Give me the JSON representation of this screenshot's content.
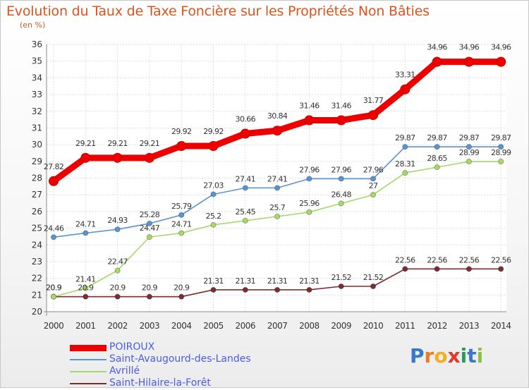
{
  "title": "Evolution du Taux de Taxe Foncière sur les Propriétés Non Bâties",
  "subtitle": "(en %)",
  "chart_data": {
    "type": "line",
    "x": [
      "2000",
      "2001",
      "2002",
      "2003",
      "2004",
      "2005",
      "2006",
      "2007",
      "2008",
      "2009",
      "2010",
      "2011",
      "2012",
      "2013",
      "2014"
    ],
    "ylim": [
      20,
      36
    ],
    "yticks": [
      "20",
      "21",
      "22",
      "23",
      "24",
      "25",
      "26",
      "27",
      "28",
      "29",
      "30",
      "31",
      "32",
      "33",
      "34",
      "35",
      "36"
    ],
    "grid": true,
    "legend_position": "bottom-left",
    "series": [
      {
        "name": "POIROUX",
        "color": "#ee0000",
        "values": [
          27.82,
          29.21,
          29.21,
          29.21,
          29.92,
          29.92,
          30.66,
          30.84,
          31.46,
          31.46,
          31.77,
          33.31,
          34.96,
          34.96,
          34.96
        ],
        "labels": [
          "27.82",
          "29.21",
          "29.21",
          "29.21",
          "29.92",
          "29.92",
          "30.66",
          "30.84",
          "31.46",
          "31.46",
          "31.77",
          "33.31",
          "34.96",
          "34.96",
          "34.96"
        ]
      },
      {
        "name": "Saint-Avaugourd-des-Landes",
        "color": "#5b95cf",
        "values": [
          24.46,
          24.71,
          24.93,
          25.28,
          25.79,
          27.03,
          27.41,
          27.41,
          27.96,
          27.96,
          27.96,
          29.87,
          29.87,
          29.87,
          29.87
        ],
        "labels": [
          "24.46",
          "24.71",
          "24.93",
          "25.28",
          "25.79",
          "27.03",
          "27.41",
          "27.41",
          "27.96",
          "27.96",
          "27.96",
          "29.87",
          "29.87",
          "29.87",
          "29.87"
        ]
      },
      {
        "name": "Avrillé",
        "color": "#a6d96a",
        "values": [
          20.9,
          21.41,
          22.47,
          24.47,
          24.71,
          25.2,
          25.45,
          25.7,
          25.96,
          26.48,
          27,
          28.31,
          28.65,
          28.99,
          28.99
        ],
        "labels": [
          "20.9",
          "21.41",
          "22.47",
          "24.47",
          "24.71",
          "25.2",
          "25.45",
          "25.7",
          "25.96",
          "26.48",
          "27",
          "28.31",
          "28.65",
          "28.99",
          "28.99"
        ]
      },
      {
        "name": "Saint-Hilaire-la-Forêt",
        "color": "#7a2e2e",
        "values": [
          20.9,
          20.9,
          20.9,
          20.9,
          20.9,
          21.31,
          21.31,
          21.31,
          21.31,
          21.52,
          21.52,
          22.56,
          22.56,
          22.56,
          22.56
        ],
        "labels": [
          "20.9",
          "20.9",
          "20.9",
          "20.9",
          "20.9",
          "21.31",
          "21.31",
          "21.31",
          "21.31",
          "21.52",
          "21.52",
          "22.56",
          "22.56",
          "22.56",
          "22.56"
        ]
      }
    ]
  },
  "logo": {
    "letters": [
      "P",
      "r",
      "o",
      "x",
      "i",
      "t",
      "i"
    ],
    "colors": [
      "#3a78c9",
      "#e97b25",
      "#f0b020",
      "#e23a2a",
      "#2e9a5a",
      "#3a78c9",
      "#8ac043"
    ]
  }
}
